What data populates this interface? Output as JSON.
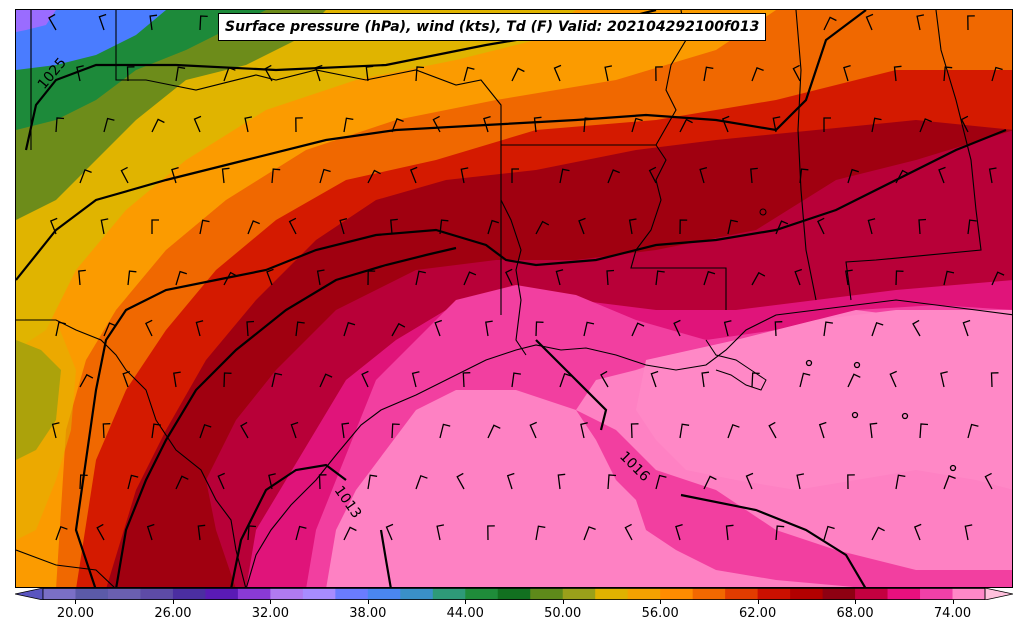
{
  "title": "Surface pressure (hPa), wind (kts), Td (F) Valid: 202104292100f013",
  "isobar_labels": [
    "1025",
    "1016",
    "1013"
  ],
  "colorbar": {
    "tick_labels": [
      "20.00",
      "26.00",
      "32.00",
      "38.00",
      "44.00",
      "50.00",
      "56.00",
      "62.00",
      "68.00",
      "74.00"
    ],
    "min": 18,
    "max": 76,
    "levels": [
      18,
      20,
      22,
      24,
      26,
      28,
      30,
      32,
      34,
      36,
      38,
      40,
      42,
      44,
      46,
      48,
      50,
      52,
      54,
      56,
      58,
      60,
      62,
      64,
      66,
      68,
      70,
      72,
      74,
      76
    ],
    "colors": [
      "#7a6fc6",
      "#5b5aa8",
      "#6a5fb0",
      "#5d4ba6",
      "#4b2ea1",
      "#5a1ab5",
      "#8a3ad6",
      "#b07af0",
      "#a78cff",
      "#6a7cff",
      "#4a86f0",
      "#3a90c8",
      "#2e9a78",
      "#1f8c3a",
      "#127020",
      "#5e8a1a",
      "#9aa01a",
      "#e0b200",
      "#f4a200",
      "#ff8c00",
      "#f26800",
      "#e23c00",
      "#cc1000",
      "#b30000",
      "#8e0012",
      "#c40040",
      "#e8107e",
      "#f040a8",
      "#ff88c8"
    ]
  },
  "map_colors": {
    "purple": "#9a6cff",
    "blue": "#4a7cff",
    "green": "#1d8a3a",
    "olive": "#6d8c1a",
    "yellow": "#e0b400",
    "orange": "#fb9b00",
    "darkorange": "#f06800",
    "red": "#d41a00",
    "darkred": "#a00010",
    "crimson": "#b80038",
    "magenta": "#e0147a",
    "pink": "#f23fa0",
    "lightpink": "#ff88c6"
  }
}
